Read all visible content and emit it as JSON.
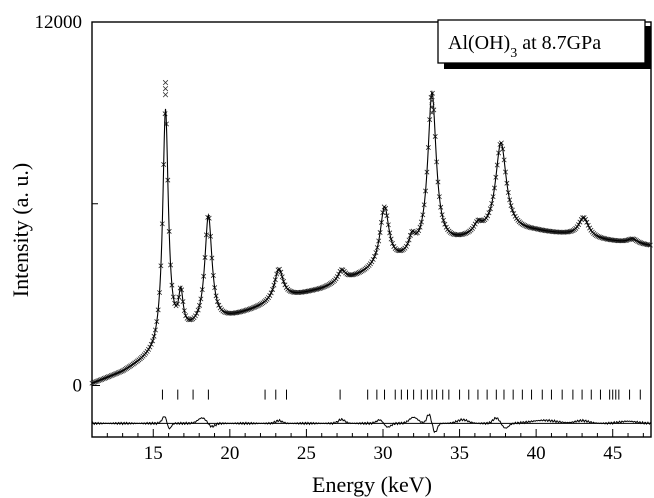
{
  "chart_data": {
    "type": "scatter",
    "title": "",
    "legend_box": {
      "label_main": "Al(OH)",
      "label_sub": "3",
      "label_rest": " at 8.7GPa"
    },
    "xlabel": "Energy (keV)",
    "ylabel": "Intensity (a. u.)",
    "xlim": [
      11,
      47.5
    ],
    "ylim": [
      -1700,
      12000
    ],
    "x_ticks": [
      15,
      20,
      25,
      30,
      35,
      40,
      45
    ],
    "y_tick_labels": [
      {
        "value": 0,
        "label": "0"
      },
      {
        "value": 12000,
        "label": "12000"
      }
    ],
    "y_minor_ticks": [
      6000
    ],
    "grid": false,
    "background": {
      "points": [
        [
          11,
          50
        ],
        [
          13,
          420
        ],
        [
          15,
          950
        ],
        [
          16,
          1450
        ],
        [
          18,
          1850
        ],
        [
          20,
          2200
        ],
        [
          22,
          2550
        ],
        [
          24,
          2900
        ],
        [
          26,
          3150
        ],
        [
          28,
          3500
        ],
        [
          30,
          3850
        ],
        [
          32,
          4200
        ],
        [
          34,
          4550
        ],
        [
          35,
          4700
        ],
        [
          36,
          4850
        ],
        [
          38,
          5050
        ],
        [
          40,
          5050
        ],
        [
          42,
          4950
        ],
        [
          44,
          4800
        ],
        [
          47.5,
          4600
        ]
      ]
    },
    "peaks": [
      {
        "center": 15.8,
        "height": 7700,
        "width": 0.22
      },
      {
        "center": 16.8,
        "height": 1200,
        "width": 0.18
      },
      {
        "center": 18.6,
        "height": 3600,
        "width": 0.28
      },
      {
        "center": 23.2,
        "height": 1050,
        "width": 0.35
      },
      {
        "center": 27.3,
        "height": 380,
        "width": 0.3
      },
      {
        "center": 30.1,
        "height": 1950,
        "width": 0.35
      },
      {
        "center": 31.9,
        "height": 500,
        "width": 0.25
      },
      {
        "center": 33.2,
        "height": 5200,
        "width": 0.33
      },
      {
        "center": 36.2,
        "height": 300,
        "width": 0.3
      },
      {
        "center": 37.7,
        "height": 2950,
        "width": 0.42
      },
      {
        "center": 43.1,
        "height": 650,
        "width": 0.4
      },
      {
        "center": 46.3,
        "height": 150,
        "width": 0.4
      }
    ],
    "outlier_points": [
      {
        "x": 15.8,
        "y": 9600
      },
      {
        "x": 15.8,
        "y": 9800
      },
      {
        "x": 15.8,
        "y": 10000
      },
      {
        "x": 33.2,
        "y": 9000
      },
      {
        "x": 33.2,
        "y": 9200
      },
      {
        "x": 33.2,
        "y": 9400
      }
    ],
    "reflection_ticks": [
      15.6,
      16.6,
      17.6,
      18.6,
      22.3,
      23.0,
      23.7,
      27.2,
      29.0,
      29.6,
      30.1,
      30.8,
      31.2,
      31.6,
      32.0,
      32.5,
      32.9,
      33.2,
      33.5,
      33.9,
      34.3,
      35.0,
      35.6,
      36.2,
      36.8,
      37.4,
      37.9,
      38.5,
      39.1,
      39.7,
      40.4,
      41.0,
      41.7,
      42.4,
      43.0,
      43.6,
      44.2,
      44.8,
      45.0,
      45.2,
      45.4,
      46.1,
      46.8
    ],
    "reflection_tick_level": -300,
    "difference_baseline": -1250,
    "difference_residuals": [
      {
        "center": 15.8,
        "amp": 300,
        "width": 0.25
      },
      {
        "center": 16.0,
        "amp": -300,
        "width": 0.2
      },
      {
        "center": 18.2,
        "amp": 180,
        "width": 0.4
      },
      {
        "center": 18.8,
        "amp": -120,
        "width": 0.3
      },
      {
        "center": 23.2,
        "amp": 90,
        "width": 0.3
      },
      {
        "center": 27.3,
        "amp": 130,
        "width": 0.3
      },
      {
        "center": 29.8,
        "amp": 120,
        "width": 0.3
      },
      {
        "center": 30.3,
        "amp": -130,
        "width": 0.3
      },
      {
        "center": 32.0,
        "amp": 200,
        "width": 0.4
      },
      {
        "center": 33.0,
        "amp": 300,
        "width": 0.2
      },
      {
        "center": 33.4,
        "amp": -300,
        "width": 0.2
      },
      {
        "center": 35.2,
        "amp": 120,
        "width": 0.5
      },
      {
        "center": 37.4,
        "amp": 180,
        "width": 0.3
      },
      {
        "center": 38.0,
        "amp": -160,
        "width": 0.3
      },
      {
        "center": 40.5,
        "amp": 100,
        "width": 1.2
      },
      {
        "center": 43.0,
        "amp": 90,
        "width": 0.6
      },
      {
        "center": 46.0,
        "amp": 70,
        "width": 0.8
      }
    ]
  }
}
